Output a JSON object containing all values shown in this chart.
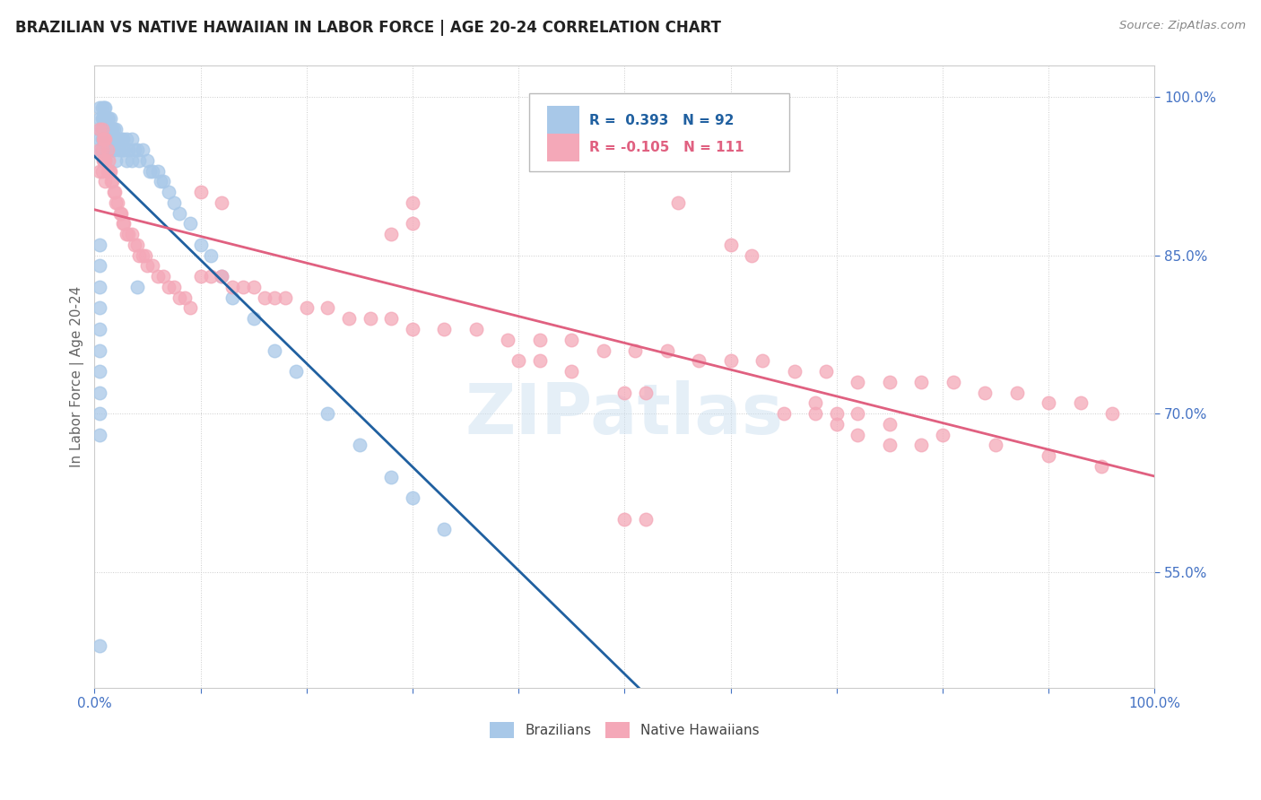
{
  "title": "BRAZILIAN VS NATIVE HAWAIIAN IN LABOR FORCE | AGE 20-24 CORRELATION CHART",
  "source": "Source: ZipAtlas.com",
  "ylabel": "In Labor Force | Age 20-24",
  "xlim": [
    0.0,
    1.0
  ],
  "ylim": [
    0.44,
    1.03
  ],
  "xticks": [
    0.0,
    0.1,
    0.2,
    0.3,
    0.4,
    0.5,
    0.6,
    0.7,
    0.8,
    0.9,
    1.0
  ],
  "xticklabels": [
    "0.0%",
    "",
    "",
    "",
    "",
    "",
    "",
    "",
    "",
    "",
    "100.0%"
  ],
  "yticks": [
    0.55,
    0.7,
    0.85,
    1.0
  ],
  "yticklabels": [
    "55.0%",
    "70.0%",
    "85.0%",
    "100.0%"
  ],
  "R_blue": 0.393,
  "N_blue": 92,
  "R_pink": -0.105,
  "N_pink": 111,
  "blue_color": "#a8c8e8",
  "pink_color": "#f4a8b8",
  "blue_line_color": "#2060a0",
  "pink_line_color": "#e06080",
  "watermark": "ZIPatlas",
  "legend_label_blue": "Brazilians",
  "legend_label_pink": "Native Hawaiians",
  "blue_scatter_x": [
    0.005,
    0.005,
    0.005,
    0.005,
    0.005,
    0.007,
    0.007,
    0.007,
    0.007,
    0.007,
    0.008,
    0.008,
    0.008,
    0.009,
    0.009,
    0.009,
    0.009,
    0.01,
    0.01,
    0.01,
    0.01,
    0.01,
    0.01,
    0.012,
    0.012,
    0.012,
    0.013,
    0.013,
    0.014,
    0.014,
    0.015,
    0.015,
    0.015,
    0.016,
    0.016,
    0.016,
    0.017,
    0.018,
    0.018,
    0.019,
    0.02,
    0.02,
    0.02,
    0.022,
    0.023,
    0.025,
    0.026,
    0.027,
    0.028,
    0.03,
    0.03,
    0.032,
    0.035,
    0.035,
    0.038,
    0.04,
    0.042,
    0.045,
    0.05,
    0.052,
    0.055,
    0.06,
    0.062,
    0.065,
    0.07,
    0.075,
    0.08,
    0.09,
    0.1,
    0.11,
    0.12,
    0.13,
    0.15,
    0.17,
    0.19,
    0.22,
    0.25,
    0.28,
    0.3,
    0.33,
    0.04,
    0.005,
    0.005,
    0.005,
    0.005,
    0.005,
    0.005,
    0.005,
    0.005,
    0.005,
    0.005,
    0.005
  ],
  "blue_scatter_y": [
    0.99,
    0.98,
    0.97,
    0.96,
    0.95,
    0.99,
    0.98,
    0.97,
    0.96,
    0.95,
    0.98,
    0.97,
    0.96,
    0.99,
    0.97,
    0.96,
    0.94,
    0.99,
    0.98,
    0.97,
    0.96,
    0.95,
    0.94,
    0.98,
    0.97,
    0.96,
    0.98,
    0.96,
    0.97,
    0.96,
    0.98,
    0.97,
    0.96,
    0.97,
    0.96,
    0.95,
    0.97,
    0.97,
    0.95,
    0.96,
    0.97,
    0.96,
    0.94,
    0.96,
    0.95,
    0.96,
    0.95,
    0.96,
    0.95,
    0.96,
    0.94,
    0.95,
    0.96,
    0.94,
    0.95,
    0.95,
    0.94,
    0.95,
    0.94,
    0.93,
    0.93,
    0.93,
    0.92,
    0.92,
    0.91,
    0.9,
    0.89,
    0.88,
    0.86,
    0.85,
    0.83,
    0.81,
    0.79,
    0.76,
    0.74,
    0.7,
    0.67,
    0.64,
    0.62,
    0.59,
    0.82,
    0.86,
    0.84,
    0.82,
    0.8,
    0.78,
    0.76,
    0.74,
    0.72,
    0.7,
    0.68,
    0.48
  ],
  "pink_scatter_x": [
    0.005,
    0.005,
    0.005,
    0.007,
    0.007,
    0.007,
    0.008,
    0.008,
    0.009,
    0.009,
    0.01,
    0.01,
    0.01,
    0.012,
    0.012,
    0.013,
    0.014,
    0.015,
    0.016,
    0.017,
    0.018,
    0.019,
    0.02,
    0.022,
    0.024,
    0.025,
    0.027,
    0.028,
    0.03,
    0.032,
    0.035,
    0.038,
    0.04,
    0.042,
    0.045,
    0.048,
    0.05,
    0.055,
    0.06,
    0.065,
    0.07,
    0.075,
    0.08,
    0.085,
    0.09,
    0.1,
    0.11,
    0.12,
    0.13,
    0.14,
    0.15,
    0.16,
    0.17,
    0.18,
    0.2,
    0.22,
    0.24,
    0.26,
    0.28,
    0.3,
    0.33,
    0.36,
    0.39,
    0.42,
    0.45,
    0.48,
    0.51,
    0.54,
    0.57,
    0.6,
    0.63,
    0.66,
    0.69,
    0.72,
    0.75,
    0.78,
    0.81,
    0.84,
    0.87,
    0.9,
    0.93,
    0.96,
    0.1,
    0.12,
    0.5,
    0.52,
    0.5,
    0.52,
    0.3,
    0.55,
    0.3,
    0.28,
    0.6,
    0.62,
    0.65,
    0.68,
    0.7,
    0.72,
    0.75,
    0.78,
    0.4,
    0.42,
    0.45,
    0.68,
    0.7,
    0.72,
    0.75,
    0.8,
    0.85,
    0.9,
    0.95
  ],
  "pink_scatter_y": [
    0.97,
    0.95,
    0.93,
    0.97,
    0.95,
    0.93,
    0.96,
    0.94,
    0.96,
    0.94,
    0.96,
    0.94,
    0.92,
    0.95,
    0.93,
    0.94,
    0.93,
    0.93,
    0.92,
    0.92,
    0.91,
    0.91,
    0.9,
    0.9,
    0.89,
    0.89,
    0.88,
    0.88,
    0.87,
    0.87,
    0.87,
    0.86,
    0.86,
    0.85,
    0.85,
    0.85,
    0.84,
    0.84,
    0.83,
    0.83,
    0.82,
    0.82,
    0.81,
    0.81,
    0.8,
    0.83,
    0.83,
    0.83,
    0.82,
    0.82,
    0.82,
    0.81,
    0.81,
    0.81,
    0.8,
    0.8,
    0.79,
    0.79,
    0.79,
    0.78,
    0.78,
    0.78,
    0.77,
    0.77,
    0.77,
    0.76,
    0.76,
    0.76,
    0.75,
    0.75,
    0.75,
    0.74,
    0.74,
    0.73,
    0.73,
    0.73,
    0.73,
    0.72,
    0.72,
    0.71,
    0.71,
    0.7,
    0.91,
    0.9,
    0.72,
    0.72,
    0.6,
    0.6,
    0.9,
    0.9,
    0.88,
    0.87,
    0.86,
    0.85,
    0.7,
    0.7,
    0.69,
    0.68,
    0.67,
    0.67,
    0.75,
    0.75,
    0.74,
    0.71,
    0.7,
    0.7,
    0.69,
    0.68,
    0.67,
    0.66,
    0.65
  ]
}
